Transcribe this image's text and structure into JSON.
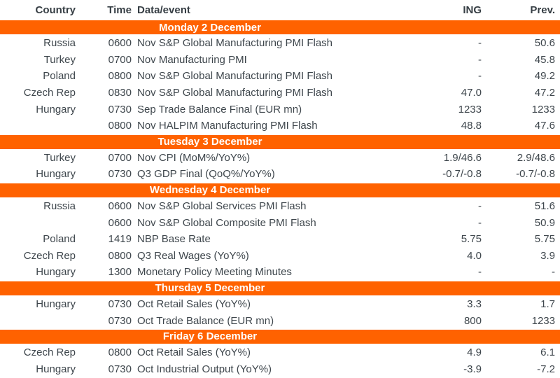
{
  "colors": {
    "accent_orange": "#FF6200",
    "text": "#3E464C",
    "band_text": "#FFFFFF",
    "background": "#FFFFFF"
  },
  "chart_data": {
    "type": "table",
    "columns": {
      "country": "Country",
      "time": "Time",
      "event": "Data/event",
      "ing": "ING",
      "prev": "Prev."
    },
    "sections": [
      {
        "title": "Monday 2 December",
        "rows": [
          {
            "country": "Russia",
            "time": "0600",
            "event": "Nov S&P Global Manufacturing PMI Flash",
            "ing": "-",
            "prev": "50.6"
          },
          {
            "country": "Turkey",
            "time": "0700",
            "event": "Nov Manufacturing PMI",
            "ing": "-",
            "prev": "45.8"
          },
          {
            "country": "Poland",
            "time": "0800",
            "event": "Nov S&P Global Manufacturing PMI Flash",
            "ing": "-",
            "prev": "49.2"
          },
          {
            "country": "Czech Rep",
            "time": "0830",
            "event": "Nov S&P Global Manufacturing PMI Flash",
            "ing": "47.0",
            "prev": "47.2"
          },
          {
            "country": "Hungary",
            "time": "0730",
            "event": "Sep Trade Balance Final (EUR mn)",
            "ing": "1233",
            "prev": "1233"
          },
          {
            "country": "",
            "time": "0800",
            "event": "Nov HALPIM Manufacturing PMI Flash",
            "ing": "48.8",
            "prev": "47.6"
          }
        ]
      },
      {
        "title": "Tuesday 3 December",
        "rows": [
          {
            "country": "Turkey",
            "time": "0700",
            "event": "Nov CPI (MoM%/YoY%)",
            "ing": "1.9/46.6",
            "prev": "2.9/48.6"
          },
          {
            "country": "Hungary",
            "time": "0730",
            "event": "Q3 GDP Final (QoQ%/YoY%)",
            "ing": "-0.7/-0.8",
            "prev": "-0.7/-0.8"
          }
        ]
      },
      {
        "title": "Wednesday 4 December",
        "rows": [
          {
            "country": "Russia",
            "time": "0600",
            "event": "Nov S&P Global Services PMI Flash",
            "ing": "-",
            "prev": "51.6"
          },
          {
            "country": "",
            "time": "0600",
            "event": "Nov S&P Global Composite PMI Flash",
            "ing": "-",
            "prev": "50.9"
          },
          {
            "country": "Poland",
            "time": "1419",
            "event": "NBP Base Rate",
            "ing": "5.75",
            "prev": "5.75"
          },
          {
            "country": "Czech Rep",
            "time": "0800",
            "event": "Q3 Real Wages (YoY%)",
            "ing": "4.0",
            "prev": "3.9"
          },
          {
            "country": "Hungary",
            "time": "1300",
            "event": "Monetary Policy Meeting Minutes",
            "ing": "-",
            "prev": "-"
          }
        ]
      },
      {
        "title": "Thursday 5 December",
        "rows": [
          {
            "country": "Hungary",
            "time": "0730",
            "event": "Oct Retail Sales (YoY%)",
            "ing": "3.3",
            "prev": "1.7"
          },
          {
            "country": "",
            "time": "0730",
            "event": "Oct Trade Balance (EUR mn)",
            "ing": "800",
            "prev": "1233"
          }
        ]
      },
      {
        "title": "Friday 6 December",
        "rows": [
          {
            "country": "Czech Rep",
            "time": "0800",
            "event": "Oct Retail Sales (YoY%)",
            "ing": "4.9",
            "prev": "6.1"
          },
          {
            "country": "Hungary",
            "time": "0730",
            "event": "Oct Industrial Output (YoY%)",
            "ing": "-3.9",
            "prev": "-7.2"
          }
        ]
      }
    ]
  }
}
